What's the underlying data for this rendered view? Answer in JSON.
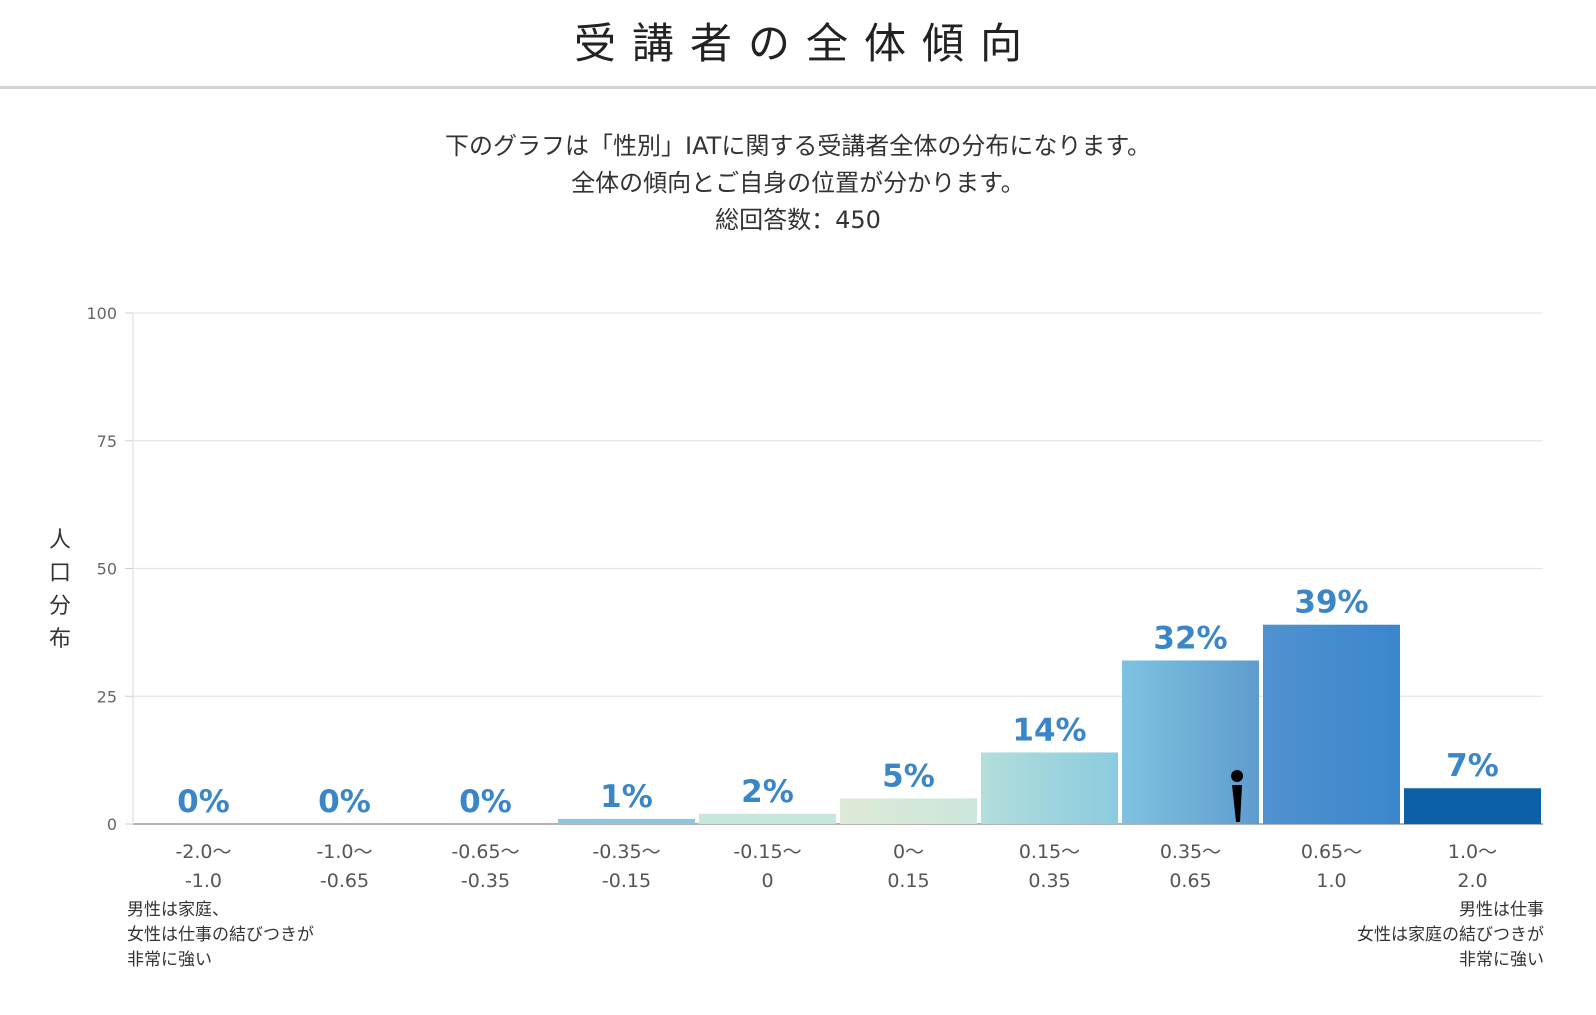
{
  "header": {
    "title": "受講者の全体傾向"
  },
  "intro": {
    "line1": "下のグラフは「性別」IATに関する受講者全体の分布になります。",
    "line2": "全体の傾向とご自身の位置が分かります。",
    "line3": "総回答数：450"
  },
  "axis_notes": {
    "left": [
      "男性は家庭、",
      "女性は仕事の結びつきが",
      "非常に強い"
    ],
    "right": [
      "男性は仕事",
      "女性は家庭の結びつきが",
      "非常に強い"
    ]
  },
  "chart_data": {
    "type": "bar",
    "title": "",
    "ylabel": "人口分布",
    "xlabel": "",
    "ylim": [
      0,
      100
    ],
    "yticks": [
      0,
      25,
      50,
      75,
      100
    ],
    "grid": true,
    "legend": "none",
    "categories": [
      [
        "-2.0〜",
        "-1.0"
      ],
      [
        "-1.0〜",
        "-0.65"
      ],
      [
        "-0.65〜",
        "-0.35"
      ],
      [
        "-0.35〜",
        "-0.15"
      ],
      [
        "-0.15〜",
        "0"
      ],
      [
        "0〜",
        "0.15"
      ],
      [
        "0.15〜",
        "0.35"
      ],
      [
        "0.35〜",
        "0.65"
      ],
      [
        "0.65〜",
        "1.0"
      ],
      [
        "1.0〜",
        "2.0"
      ]
    ],
    "values": [
      0,
      0,
      0,
      1,
      2,
      5,
      14,
      32,
      39,
      7
    ],
    "data_labels": [
      "0%",
      "0%",
      "0%",
      "1%",
      "2%",
      "5%",
      "14%",
      "32%",
      "39%",
      "7%"
    ],
    "colors": {
      "label": "#3a86c8",
      "bars": [
        [
          "#c9e3ee",
          "#c9e3ee"
        ],
        [
          "#c9e3ee",
          "#c9e3ee"
        ],
        [
          "#c9e3ee",
          "#c9e3ee"
        ],
        [
          "#8ec6e0",
          "#8ec6e0"
        ],
        [
          "#c7e6dc",
          "#c7e6dc"
        ],
        [
          "#ddebd6",
          "#cbe6dc"
        ],
        [
          "#b3dedc",
          "#8bcbdf"
        ],
        [
          "#7fc2df",
          "#5e9ccf"
        ],
        [
          "#5092d0",
          "#3b86cc"
        ],
        [
          "#0b60a8",
          "#0b60a8"
        ]
      ]
    },
    "own_position_marker": {
      "category_index": 7,
      "icon": "person-marker-icon"
    }
  }
}
